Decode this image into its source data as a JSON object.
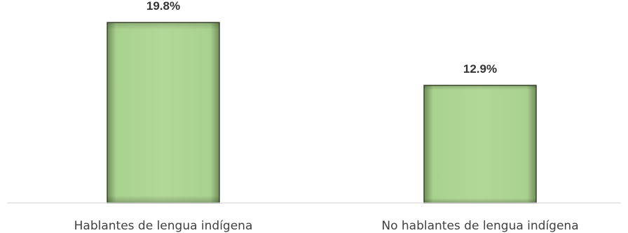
{
  "chart_data": {
    "type": "bar",
    "categories": [
      "Hablantes de lengua indígena",
      "No hablantes de lengua indígena"
    ],
    "values": [
      19.8,
      12.9
    ],
    "data_labels": [
      "19.8%",
      "12.9%"
    ],
    "title": "",
    "xlabel": "",
    "ylabel": "",
    "ylim": [
      0,
      21.5
    ],
    "grid": false,
    "legend": "none",
    "colors": {
      "bar_fill": "#a9d18e",
      "bar_edge": "#3b4a2e",
      "axis": "#d9d9d9"
    }
  }
}
